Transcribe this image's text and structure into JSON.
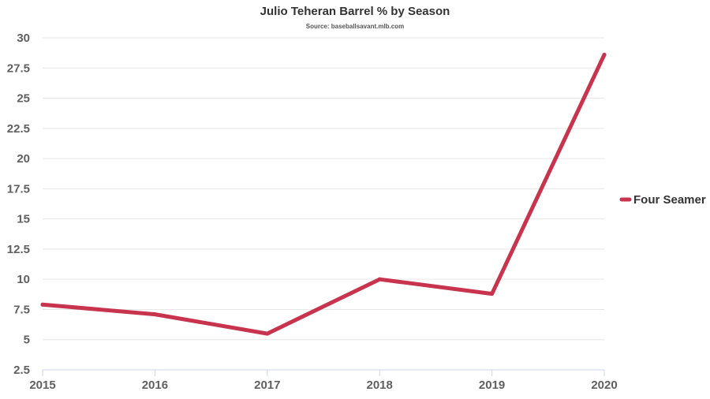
{
  "chart_data": {
    "type": "line",
    "title": "Julio Teheran Barrel % by Season",
    "subtitle": "Source: baseballsavant.mlb.com",
    "xlabel": "",
    "ylabel": "",
    "categories": [
      "2015",
      "2016",
      "2017",
      "2018",
      "2019",
      "2020"
    ],
    "series": [
      {
        "name": "Four Seamer",
        "color": "#c8334d",
        "values": [
          7.9,
          7.1,
          5.5,
          10.0,
          8.8,
          28.6
        ]
      }
    ],
    "ylim": [
      2.5,
      30
    ],
    "yticks": [
      "2.5",
      "5",
      "7.5",
      "10",
      "12.5",
      "15",
      "17.5",
      "20",
      "22.5",
      "25",
      "27.5",
      "30"
    ],
    "grid": true,
    "legend_position": "right"
  }
}
